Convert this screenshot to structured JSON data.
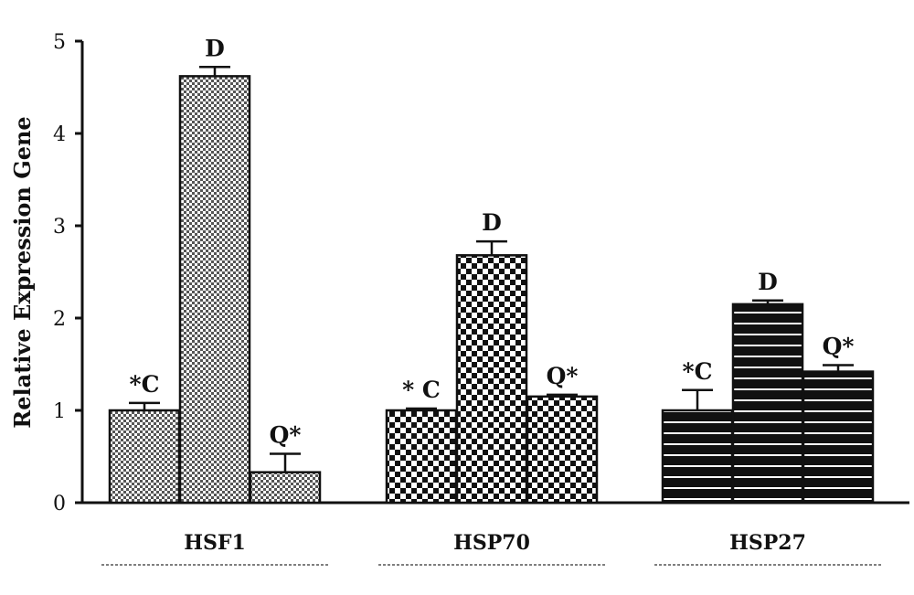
{
  "chart_data": {
    "type": "bar",
    "title": "",
    "xlabel": "",
    "ylabel": "Relative Expression Gene",
    "ylim": [
      0,
      5
    ],
    "yticks": [
      "0",
      "1",
      "2",
      "3",
      "4",
      "5"
    ],
    "categories": [
      "HSF1",
      "HSP70",
      "HSP27"
    ],
    "series": [
      {
        "values": [
          1.0,
          1.0,
          1.0
        ],
        "errors": [
          0.08,
          0.02,
          0.22
        ],
        "labels": [
          "*C",
          "* C",
          "*C"
        ]
      },
      {
        "values": [
          4.62,
          2.68,
          2.15
        ],
        "errors": [
          0.1,
          0.15,
          0.04
        ],
        "labels": [
          "D",
          "D",
          "D"
        ]
      },
      {
        "values": [
          0.33,
          1.15,
          1.42
        ],
        "errors": [
          0.2,
          0.02,
          0.07
        ],
        "labels": [
          "Q*",
          "Q*",
          "Q*"
        ]
      }
    ],
    "patterns": [
      "fine-checker",
      "coarse-checker",
      "black-horizontal-stripes"
    ],
    "grid": false,
    "legend": "none"
  }
}
